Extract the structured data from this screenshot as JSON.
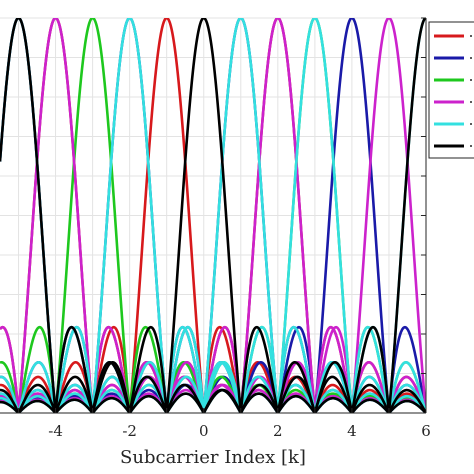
{
  "chart_data": {
    "type": "line",
    "title": "",
    "xlabel": "Subcarrier Index [k]",
    "ylabel": "",
    "xlim": [
      -5.5,
      6
    ],
    "ylim": [
      0,
      1
    ],
    "x_ticks": [
      "-4",
      "-2",
      "0",
      "2",
      "4",
      "6"
    ],
    "grid": true,
    "legend_position": "top-right",
    "curve_shape": "|sinc(k - center)|",
    "series": [
      {
        "color": "#d7191c",
        "centers": [
          -4,
          -1,
          2
        ]
      },
      {
        "color": "#1a1aa8",
        "centers": [
          -5,
          -2,
          1,
          4
        ]
      },
      {
        "color": "#1ec81e",
        "centers": [
          -3,
          3
        ]
      },
      {
        "color": "#cc22cc",
        "centers": [
          -4,
          2,
          5
        ]
      },
      {
        "color": "#33e0e0",
        "centers": [
          -5,
          -2,
          1,
          3,
          6
        ]
      },
      {
        "color": "#000000",
        "centers": [
          -5,
          0,
          6
        ]
      }
    ]
  }
}
